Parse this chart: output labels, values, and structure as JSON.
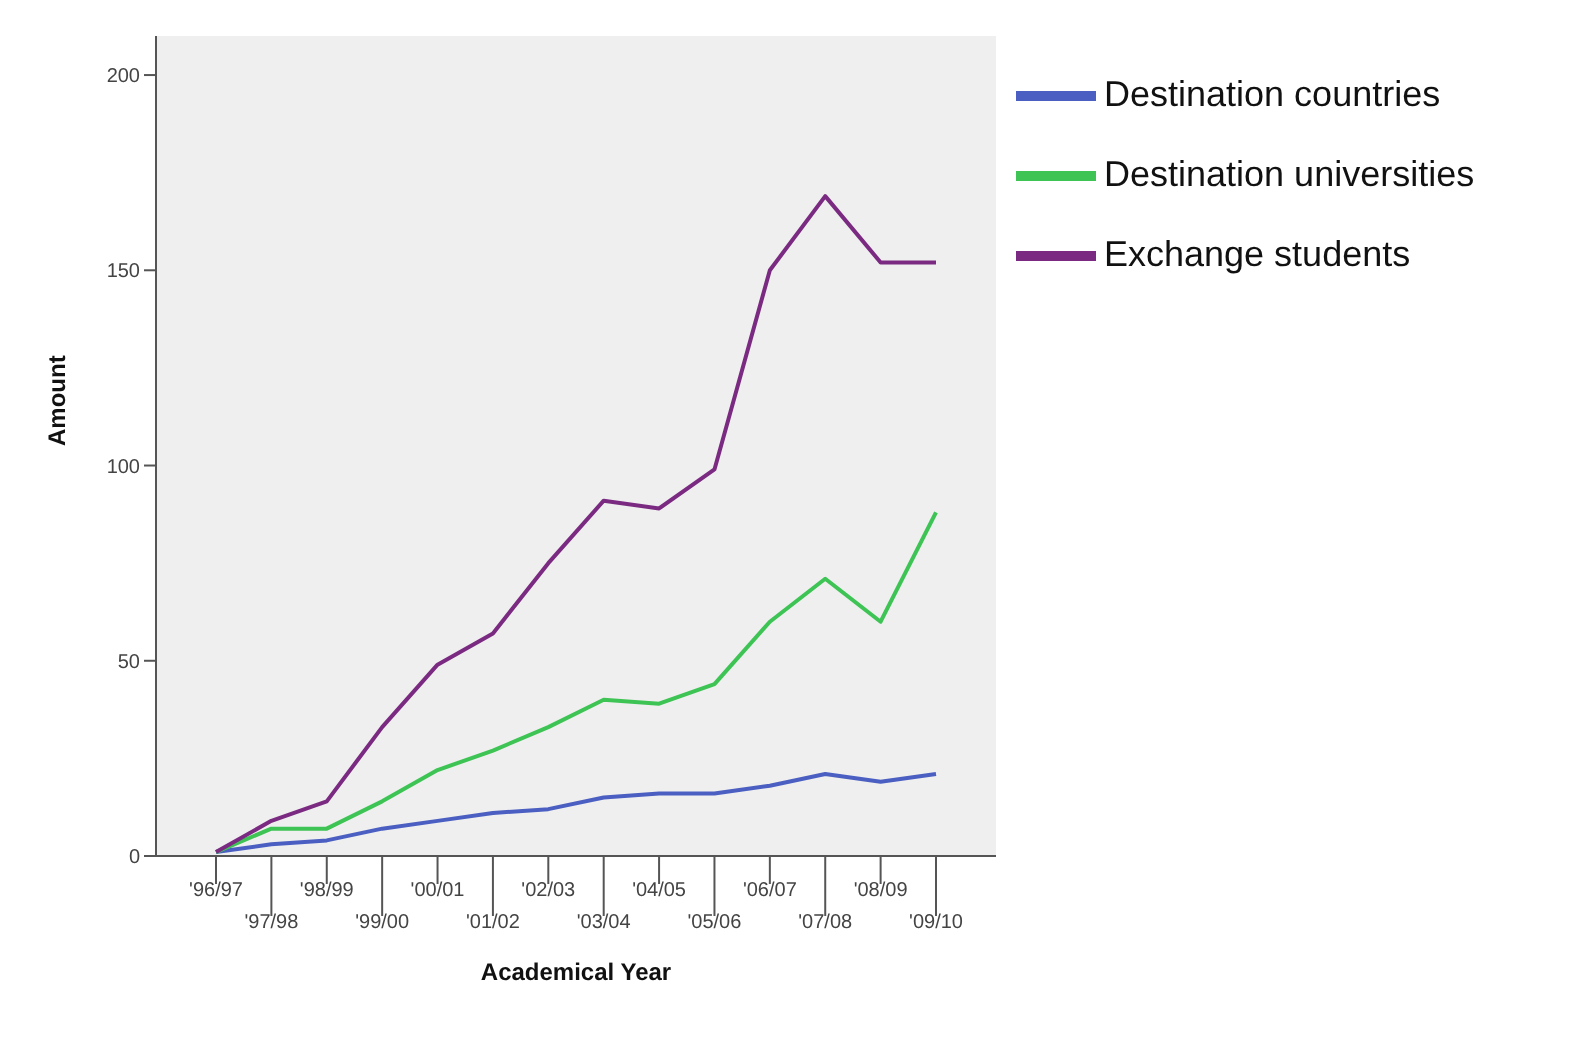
{
  "chart_data": {
    "type": "line",
    "xlabel": "Academical Year",
    "ylabel": "Amount",
    "categories": [
      "'96/97",
      "'97/98",
      "'98/99",
      "'99/00",
      "'00/01",
      "'01/02",
      "'02/03",
      "'03/04",
      "'04/05",
      "'05/06",
      "'06/07",
      "'07/08",
      "'08/09",
      "'09/10"
    ],
    "series": [
      {
        "name": "Destination countries",
        "color": "#4a5fc1",
        "values": [
          1,
          3,
          4,
          7,
          9,
          11,
          12,
          15,
          16,
          16,
          18,
          21,
          19,
          21
        ]
      },
      {
        "name": "Destination universities",
        "color": "#3ec454",
        "values": [
          1,
          7,
          7,
          14,
          22,
          27,
          33,
          40,
          39,
          44,
          60,
          71,
          60,
          88
        ]
      },
      {
        "name": "Exchange students",
        "color": "#7b2a82",
        "values": [
          1,
          9,
          14,
          33,
          49,
          57,
          75,
          91,
          89,
          99,
          150,
          169,
          152,
          152
        ]
      }
    ],
    "ylim": [
      0,
      210
    ],
    "yticks": [
      0,
      50,
      100,
      150,
      200
    ],
    "grid": false,
    "legend": "top right",
    "marker": "none",
    "line_style": "solid"
  }
}
